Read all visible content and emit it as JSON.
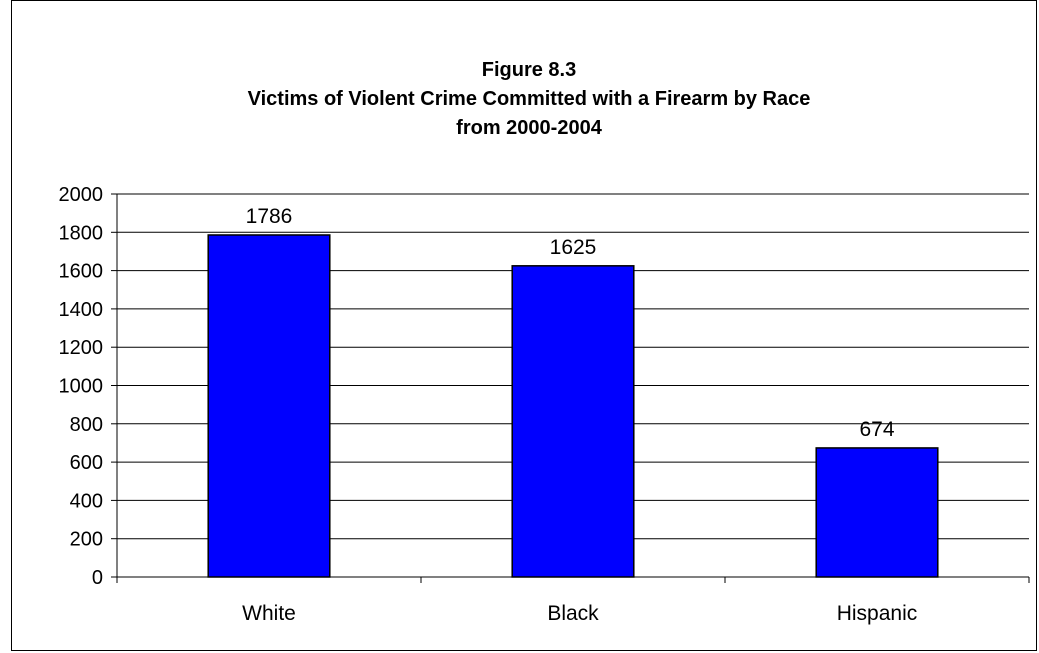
{
  "chart_data": {
    "type": "bar",
    "title": [
      "Figure 8.3",
      "Victims of Violent Crime Committed with a Firearm by Race",
      "from 2000-2004"
    ],
    "categories": [
      "White",
      "Black",
      "Hispanic"
    ],
    "values": [
      1786,
      1625,
      674
    ],
    "data_labels": [
      "1786",
      "1625",
      "674"
    ],
    "ylim": [
      0,
      2000
    ],
    "yticks": [
      "0",
      "200",
      "400",
      "600",
      "800",
      "1000",
      "1200",
      "1400",
      "1600",
      "1800",
      "2000"
    ],
    "grid": true,
    "legend": false,
    "bar_color": "#0000ff"
  }
}
